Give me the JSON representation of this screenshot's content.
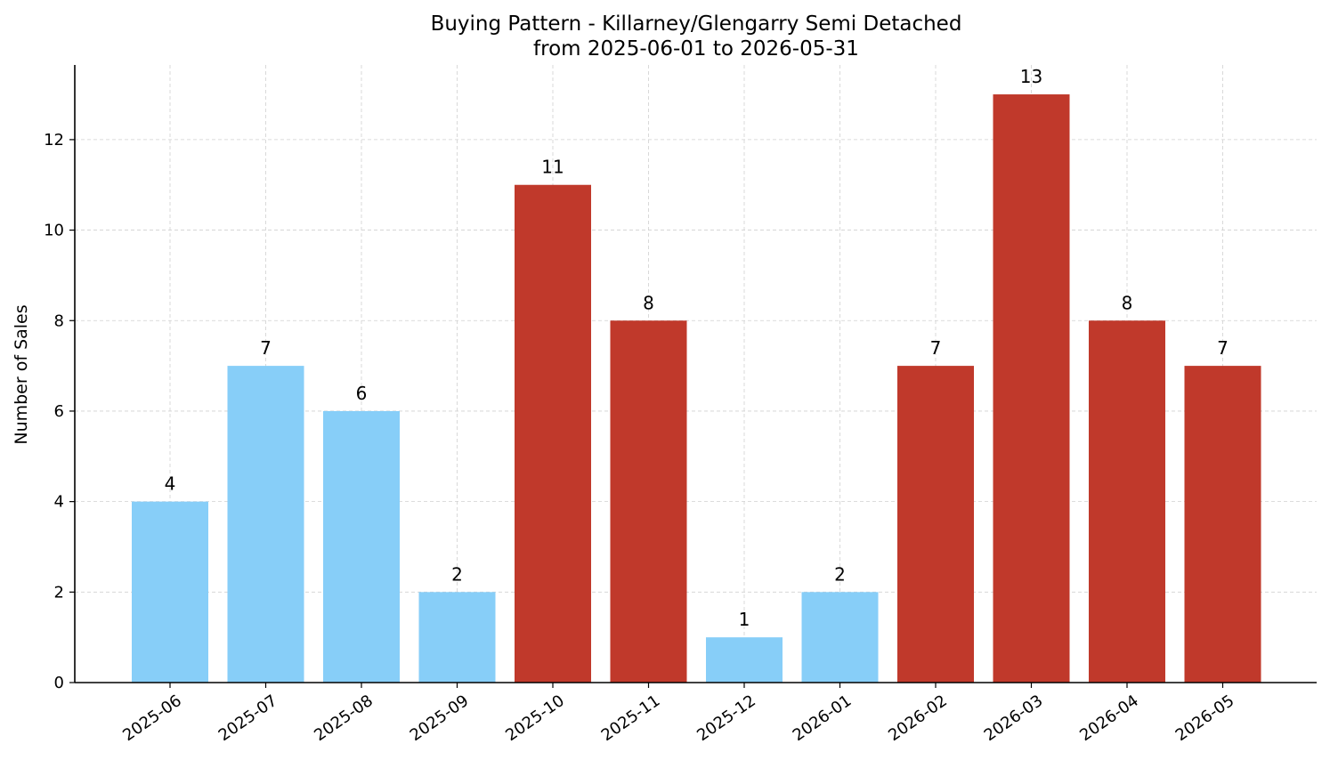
{
  "chart_data": {
    "type": "bar",
    "title": "Buying Pattern - Killarney/Glengarry Semi Detached",
    "subtitle": "from 2025-06-01 to 2026-05-31",
    "xlabel": "",
    "ylabel": "Number of Sales",
    "ylim": [
      0,
      13.65
    ],
    "yticks": [
      0,
      2,
      4,
      6,
      8,
      10,
      12
    ],
    "grid": true,
    "categories": [
      "2025-06",
      "2025-07",
      "2025-08",
      "2025-09",
      "2025-10",
      "2025-11",
      "2025-12",
      "2026-01",
      "2026-02",
      "2026-03",
      "2026-04",
      "2026-05"
    ],
    "values": [
      4,
      7,
      6,
      2,
      11,
      8,
      1,
      2,
      7,
      13,
      8,
      7
    ],
    "colors": {
      "low": "#87CEF8",
      "high": "#C0392B"
    },
    "bar_color_keys": [
      "low",
      "low",
      "low",
      "low",
      "high",
      "high",
      "low",
      "low",
      "high",
      "high",
      "high",
      "high"
    ]
  }
}
